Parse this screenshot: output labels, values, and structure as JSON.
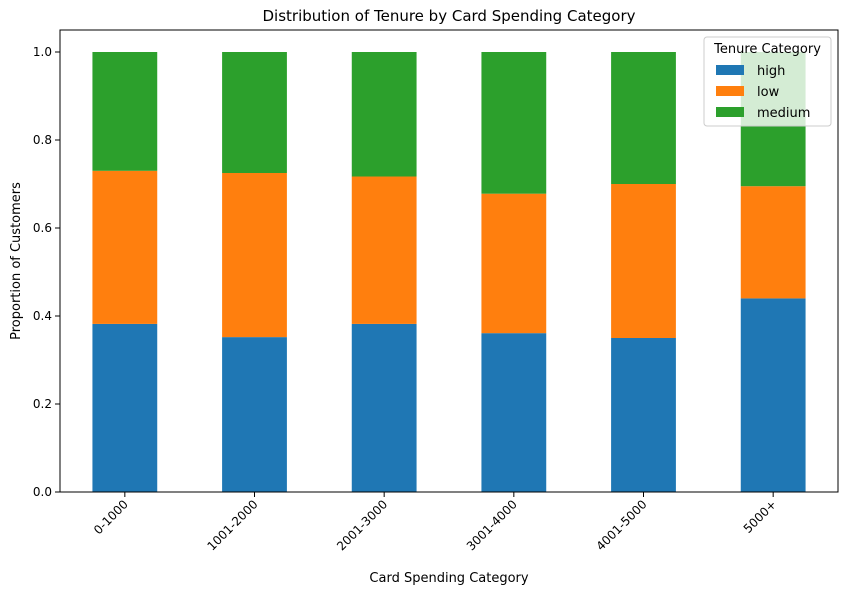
{
  "chart_data": {
    "type": "bar",
    "stacked": true,
    "title": "Distribution of Tenure by Card Spending Category",
    "xlabel": "Card Spending Category",
    "ylabel": "Proportion of Customers",
    "ylim": [
      0,
      1.05
    ],
    "yticks": [
      "0.0",
      "0.2",
      "0.4",
      "0.6",
      "0.8",
      "1.0"
    ],
    "categories": [
      "0-1000",
      "1001-2000",
      "2001-3000",
      "3001-4000",
      "4001-5000",
      "5000+"
    ],
    "series": [
      {
        "name": "high",
        "color": "#1f77b4",
        "values": [
          0.382,
          0.352,
          0.382,
          0.361,
          0.35,
          0.44
        ]
      },
      {
        "name": "low",
        "color": "#ff7f0e",
        "values": [
          0.348,
          0.373,
          0.335,
          0.317,
          0.35,
          0.255
        ]
      },
      {
        "name": "medium",
        "color": "#2ca02c",
        "values": [
          0.27,
          0.275,
          0.283,
          0.322,
          0.3,
          0.305
        ]
      }
    ],
    "legend": {
      "title": "Tenure Category",
      "placement": "top-right"
    },
    "grid": false
  }
}
